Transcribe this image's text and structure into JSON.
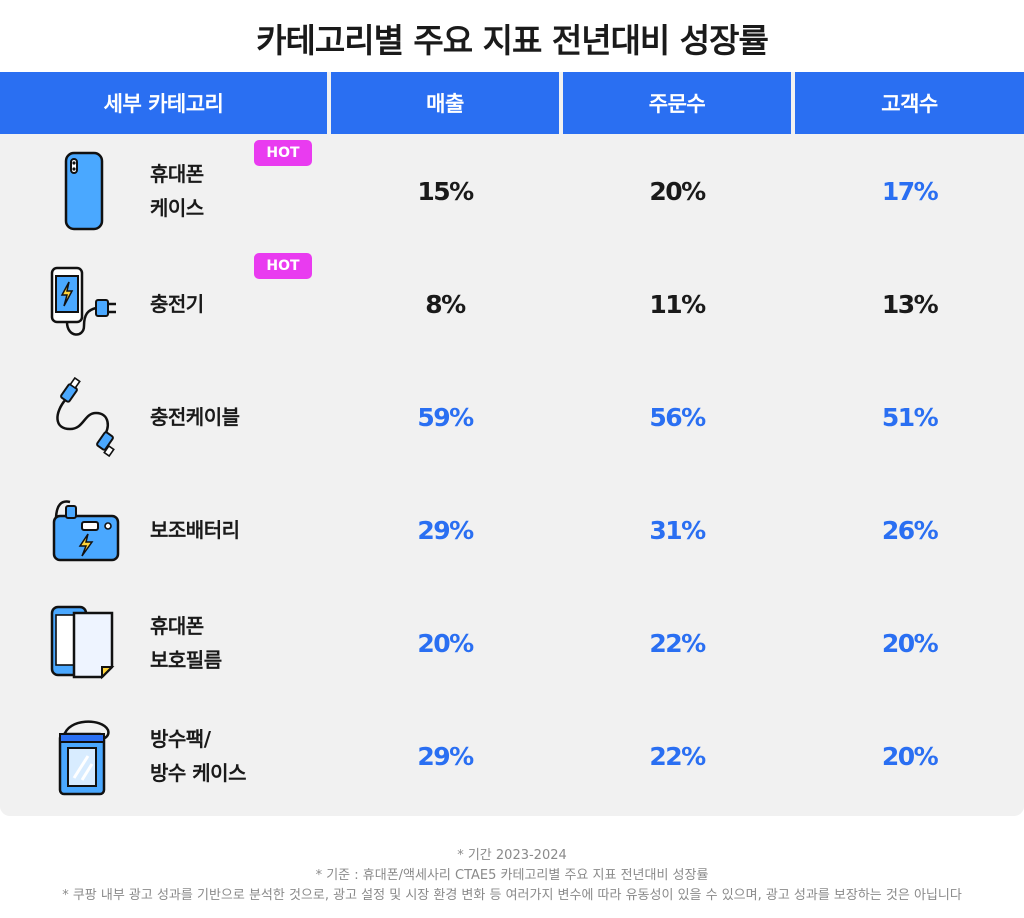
{
  "title": "카테고리별 주요 지표 전년대비 성장률",
  "header": {
    "category": "세부 카테고리",
    "sales": "매출",
    "orders": "주문수",
    "customers": "고객수"
  },
  "colors": {
    "header_bg": "#2a6ff2",
    "highlight": "#2a6ff2",
    "hot_badge": "#e93bf0",
    "row_bg": "#f1f1f1"
  },
  "rows": [
    {
      "label": "휴대폰\n케이스",
      "icon": "phone-case-icon",
      "hot": "HOT",
      "sales": "15%",
      "orders": "20%",
      "customers": "17%",
      "highlight": [
        false,
        false,
        true
      ]
    },
    {
      "label": "충전기",
      "icon": "charger-icon",
      "hot": "HOT",
      "sales": "8%",
      "orders": "11%",
      "customers": "13%",
      "highlight": [
        false,
        false,
        false
      ]
    },
    {
      "label": "충전케이블",
      "icon": "charging-cable-icon",
      "hot": "",
      "sales": "59%",
      "orders": "56%",
      "customers": "51%",
      "highlight": [
        true,
        true,
        true
      ]
    },
    {
      "label": "보조배터리",
      "icon": "power-bank-icon",
      "hot": "",
      "sales": "29%",
      "orders": "31%",
      "customers": "26%",
      "highlight": [
        true,
        true,
        true
      ]
    },
    {
      "label": "휴대폰\n보호필름",
      "icon": "screen-protector-icon",
      "hot": "",
      "sales": "20%",
      "orders": "22%",
      "customers": "20%",
      "highlight": [
        true,
        true,
        true
      ]
    },
    {
      "label": "방수팩/\n방수 케이스",
      "icon": "waterproof-pouch-icon",
      "hot": "",
      "sales": "29%",
      "orders": "22%",
      "customers": "20%",
      "highlight": [
        true,
        true,
        true
      ]
    }
  ],
  "notes": [
    "* 기간 2023-2024",
    "* 기준 : 휴대폰/액세사리 CTAE5 카테고리별 주요 지표 전년대비 성장률",
    "* 쿠팡 내부 광고 성과를 기반으로 분석한 것으로, 광고 설정 및 시장 환경 변화 등 여러가지 변수에 따라 유동성이 있을 수 있으며, 광고 성과를 보장하는 것은 아닙니다"
  ]
}
